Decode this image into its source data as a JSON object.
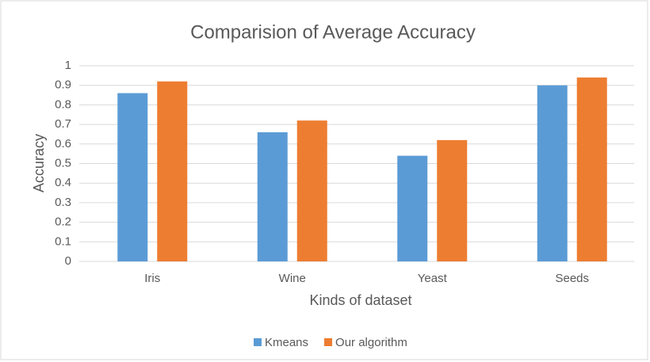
{
  "chart_data": {
    "type": "bar",
    "title": "Comparision of Average Accuracy",
    "x_label": "Kinds of dataset",
    "y_label": "Accuracy",
    "categories": [
      "Iris",
      "Wine",
      "Yeast",
      "Seeds"
    ],
    "series": [
      {
        "name": "Kmeans",
        "color": "#5b9bd5",
        "values": [
          0.86,
          0.66,
          0.54,
          0.9
        ]
      },
      {
        "name": "Our algorithm",
        "color": "#ed7d31",
        "values": [
          0.92,
          0.72,
          0.62,
          0.94
        ]
      }
    ],
    "ylim": [
      0,
      1
    ],
    "yticks": [
      0,
      0.1,
      0.2,
      0.3,
      0.4,
      0.5,
      0.6,
      0.7,
      0.8,
      0.9,
      1
    ],
    "grid": true,
    "legend": "bottom"
  }
}
